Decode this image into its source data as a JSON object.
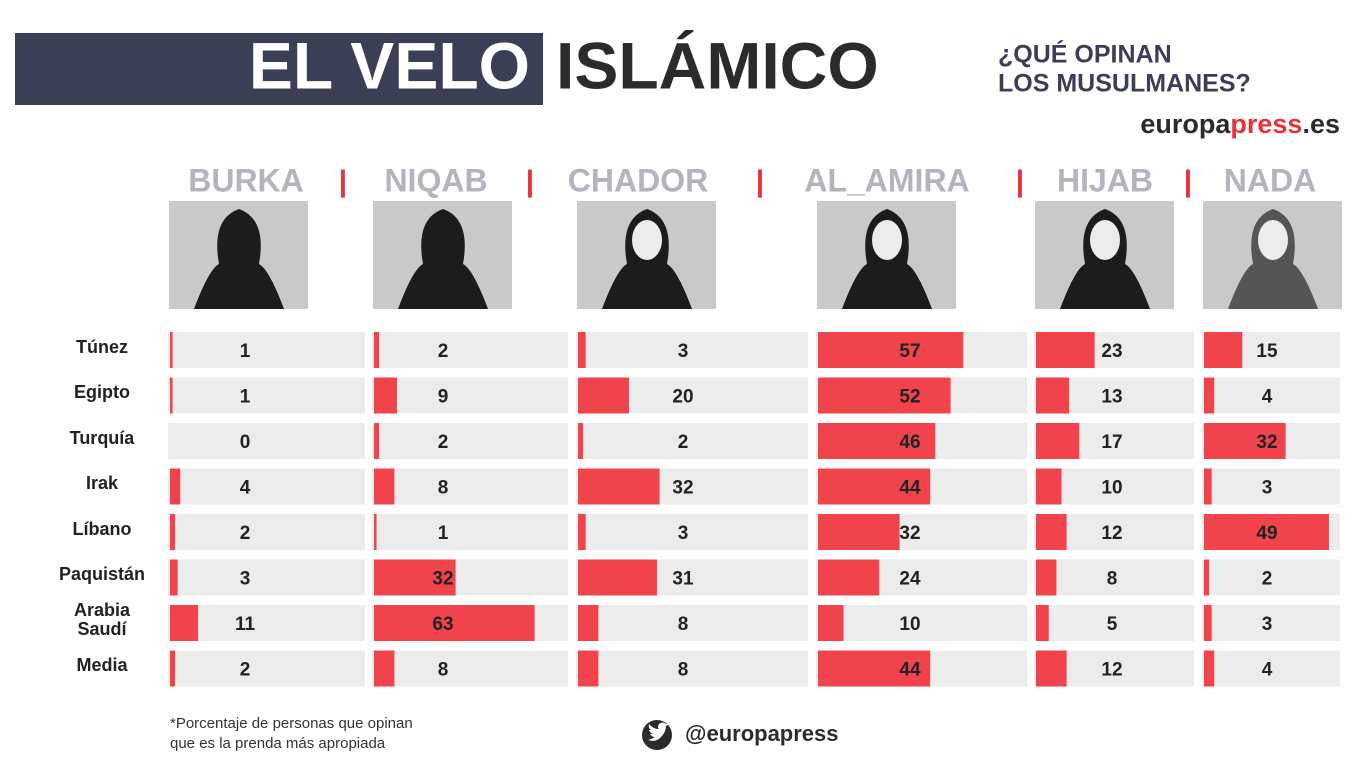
{
  "chart_data": {
    "type": "bar",
    "title": [
      "EL VELO",
      "ISLÁMICO"
    ],
    "subtitle": [
      "¿QUÉ OPINAN",
      "LOS MUSULMANES?"
    ],
    "brand": [
      "europa",
      "press",
      ".es"
    ],
    "categories": [
      "Túnez",
      "Egipto",
      "Turquía",
      "Irak",
      "Líbano",
      "Paquistán",
      "Arabia Saudí",
      "Media"
    ],
    "series": [
      {
        "name": "BURKA",
        "color": "#f1434b",
        "values": [
          1,
          1,
          0,
          4,
          2,
          3,
          11,
          2
        ]
      },
      {
        "name": "NIQAB",
        "color": "#f1434b",
        "values": [
          2,
          9,
          2,
          8,
          1,
          32,
          63,
          8
        ]
      },
      {
        "name": "CHADOR",
        "color": "#f1434b",
        "values": [
          3,
          20,
          2,
          32,
          3,
          31,
          8,
          8
        ]
      },
      {
        "name": "AL_AMIRA",
        "color": "#f1434b",
        "values": [
          57,
          52,
          46,
          44,
          32,
          24,
          10,
          44
        ]
      },
      {
        "name": "HIJAB",
        "color": "#f1434b",
        "values": [
          23,
          13,
          17,
          10,
          12,
          8,
          5,
          12
        ]
      },
      {
        "name": "NADA",
        "color": "#f1434b",
        "values": [
          15,
          4,
          32,
          3,
          49,
          2,
          3,
          4
        ]
      }
    ],
    "footnote": [
      "*Porcentaje de personas que opinan",
      "que es la prenda más apropiada"
    ],
    "twitter": "@europapress"
  }
}
